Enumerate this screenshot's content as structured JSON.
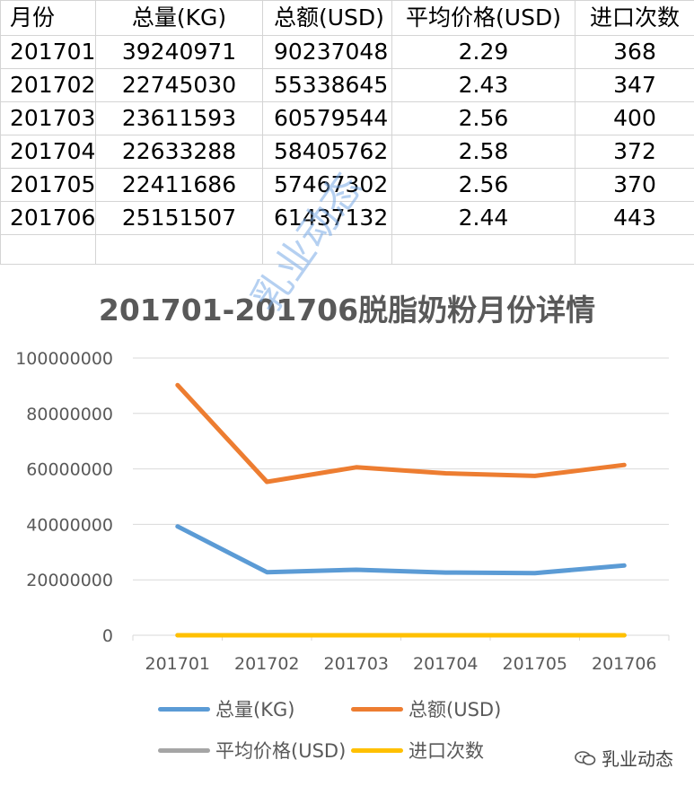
{
  "table": {
    "headers": [
      "月份",
      "总量(KG)",
      "总额(USD)",
      "平均价格(USD)",
      "进口次数"
    ],
    "rows": [
      [
        "201701",
        "39240971",
        "90237048",
        "2.29",
        "368"
      ],
      [
        "201702",
        "22745030",
        "55338645",
        "2.43",
        "347"
      ],
      [
        "201703",
        "23611593",
        "60579544",
        "2.56",
        "400"
      ],
      [
        "201704",
        "22633288",
        "58405762",
        "2.58",
        "372"
      ],
      [
        "201705",
        "22411686",
        "57467302",
        "2.56",
        "370"
      ],
      [
        "201706",
        "25151507",
        "61437132",
        "2.44",
        "443"
      ]
    ]
  },
  "chart_data": {
    "type": "line",
    "title": "201701-201706脱脂奶粉月份详情",
    "categories": [
      "201701",
      "201702",
      "201703",
      "201704",
      "201705",
      "201706"
    ],
    "ylim": [
      0,
      100000000
    ],
    "yticks": [
      "0",
      "20000000",
      "40000000",
      "60000000",
      "80000000",
      "100000000"
    ],
    "grid": true,
    "legend_position": "bottom",
    "series": [
      {
        "name": "总量(KG)",
        "color": "#5b9bd5",
        "values": [
          39240971,
          22745030,
          23611593,
          22633288,
          22411686,
          25151507
        ]
      },
      {
        "name": "总额(USD)",
        "color": "#ed7d31",
        "values": [
          90237048,
          55338645,
          60579544,
          58405762,
          57467302,
          61437132
        ]
      },
      {
        "name": "平均价格(USD)",
        "color": "#a5a5a5",
        "values": [
          2.29,
          2.43,
          2.56,
          2.58,
          2.56,
          2.44
        ]
      },
      {
        "name": "进口次数",
        "color": "#ffc000",
        "values": [
          368,
          347,
          400,
          372,
          370,
          443
        ]
      }
    ]
  },
  "watermark": "乳业动态",
  "footer": {
    "brand": "乳业动态",
    "icon": "wechat-icon"
  }
}
